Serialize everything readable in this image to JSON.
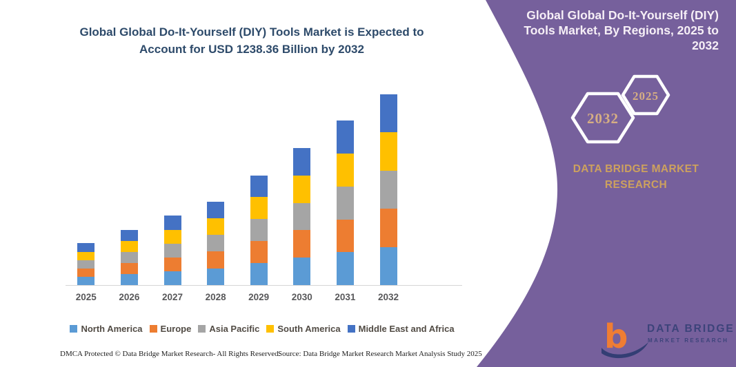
{
  "header": {
    "title_line1": "Global Global Do-It-Yourself (DIY) Tools Market is Expected to",
    "title_line2": "Account for USD 1238.36 Billion by 2032"
  },
  "chart_data": {
    "type": "bar",
    "stacked": true,
    "title": "Global Global Do-It-Yourself (DIY) Tools Market is Expected to Account for USD 1238.36 Billion by 2032",
    "unit": "USD Billion",
    "categories": [
      "2025",
      "2026",
      "2027",
      "2028",
      "2029",
      "2030",
      "2031",
      "2032"
    ],
    "series": [
      {
        "name": "North America",
        "color": "#5B9BD5",
        "values": [
          54.2,
          71.4,
          90.0,
          108.6,
          142.6,
          178.0,
          213.4,
          247.7
        ]
      },
      {
        "name": "Europe",
        "color": "#ED7D31",
        "values": [
          54.2,
          71.4,
          90.0,
          108.6,
          142.6,
          178.0,
          213.4,
          247.7
        ]
      },
      {
        "name": "Asia Pacific",
        "color": "#A5A5A5",
        "values": [
          54.2,
          71.4,
          90.0,
          108.6,
          142.6,
          178.0,
          213.4,
          247.7
        ]
      },
      {
        "name": "South America",
        "color": "#FFC000",
        "values": [
          54.2,
          71.4,
          90.0,
          108.6,
          142.6,
          178.0,
          213.4,
          247.7
        ]
      },
      {
        "name": "Middle East and Africa",
        "color": "#4472C4",
        "values": [
          54.2,
          71.4,
          90.0,
          108.6,
          142.6,
          178.0,
          213.4,
          247.7
        ]
      }
    ],
    "totals": [
      271,
      357,
      450,
      543,
      713,
      890,
      1067,
      1238.36
    ],
    "xlabel": "",
    "ylabel": "",
    "ylim": [
      0,
      1270
    ],
    "gridlines": false,
    "y_axis_visible": false,
    "legend_position": "bottom"
  },
  "panel": {
    "title_line1": "Global Global Do-It-Yourself (DIY)",
    "title_line2": "Tools Market, By Regions, 2025 to",
    "title_line3": "2032",
    "badges": [
      {
        "year": "2032"
      },
      {
        "year": "2025"
      }
    ],
    "brand_line1": "DATA BRIDGE MARKET",
    "brand_line2": "RESEARCH"
  },
  "logo": {
    "line1": "DATA BRIDGE",
    "line2": "MARKET RESEARCH"
  },
  "footer": {
    "left": "DMCA Protected © Data Bridge Market Research-  All Rights Reserved.",
    "right": "Source: Data Bridge Market Research  Market Analysis Study 2025"
  },
  "colors": {
    "panel_background": "#76609c",
    "panel_title_text": "#f6eff6",
    "brand_text": "#cda15e",
    "badge_text": "#d6ae83",
    "chart_title_text": "#2d4a6a",
    "legend_text": "#514b44",
    "axis_line": "#d6d6d6",
    "logo_orange": "#ef7d33",
    "logo_navy": "#333e74"
  }
}
